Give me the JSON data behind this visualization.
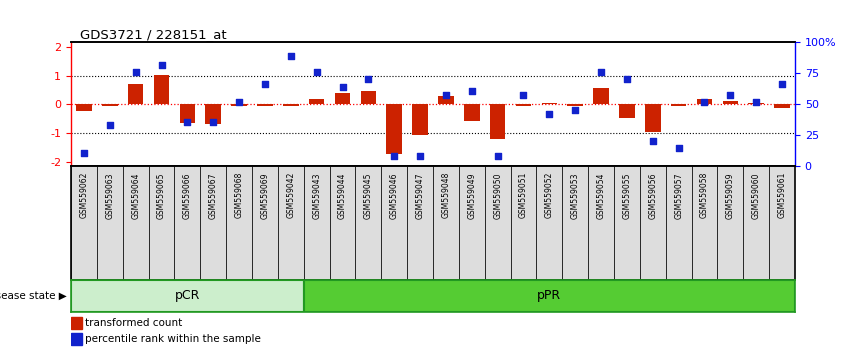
{
  "title": "GDS3721 / 228151_at",
  "samples": [
    "GSM559062",
    "GSM559063",
    "GSM559064",
    "GSM559065",
    "GSM559066",
    "GSM559067",
    "GSM559068",
    "GSM559069",
    "GSM559042",
    "GSM559043",
    "GSM559044",
    "GSM559045",
    "GSM559046",
    "GSM559047",
    "GSM559048",
    "GSM559049",
    "GSM559050",
    "GSM559051",
    "GSM559052",
    "GSM559053",
    "GSM559054",
    "GSM559055",
    "GSM559056",
    "GSM559057",
    "GSM559058",
    "GSM559059",
    "GSM559060",
    "GSM559061"
  ],
  "transformed_count": [
    -0.22,
    -0.04,
    0.72,
    1.01,
    -0.65,
    -0.68,
    -0.04,
    -0.04,
    -0.04,
    0.18,
    0.4,
    0.48,
    -1.72,
    -1.05,
    0.28,
    -0.58,
    -1.21,
    -0.04,
    0.05,
    -0.04,
    0.58,
    -0.48,
    -0.95,
    -0.04,
    0.18,
    0.12,
    0.05,
    -0.12
  ],
  "percentile_rank": [
    8,
    32,
    78,
    84,
    35,
    35,
    52,
    68,
    92,
    78,
    65,
    72,
    5,
    5,
    58,
    62,
    5,
    58,
    42,
    45,
    78,
    72,
    18,
    12,
    52,
    58,
    52,
    68
  ],
  "pCR_count": 9,
  "pPR_count": 19,
  "bar_color": "#cc2200",
  "dot_color": "#1122cc",
  "pCR_facecolor": "#cceecc",
  "pPR_facecolor": "#55cc33",
  "group_edgecolor": "#229922",
  "label_bg": "#dddddd",
  "ylim": [
    -2.15,
    2.15
  ],
  "left_yticks": [
    -2,
    -1,
    0,
    1,
    2
  ],
  "right_yticks": [
    0,
    25,
    50,
    75,
    100
  ],
  "right_yticklabels": [
    "0",
    "25",
    "50",
    "75",
    "100%"
  ]
}
